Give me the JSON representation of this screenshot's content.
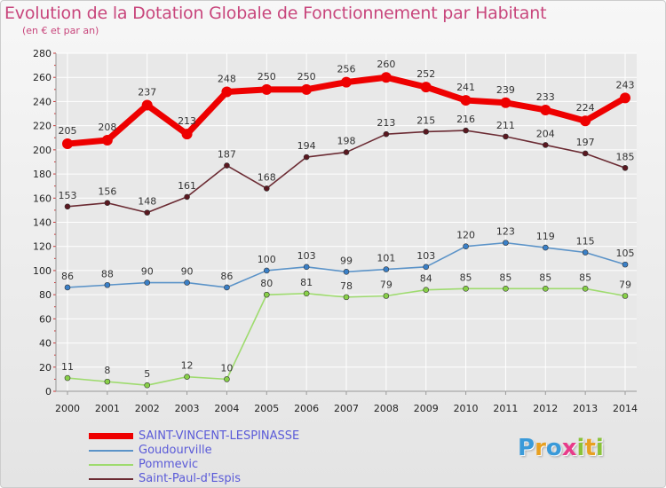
{
  "title": "Evolution de la Dotation Globale de Fonctionnement par Habitant",
  "subtitle": "(en € et par an)",
  "logo": {
    "text": "Proxiti",
    "letter_colors": [
      "#3a9ad9",
      "#e8a020",
      "#3a9ad9",
      "#e83a8a",
      "#8ac23a",
      "#e8a020",
      "#8ac23a"
    ]
  },
  "colors": {
    "title": "#c8467c",
    "legend_text": "#5a5ad8",
    "grid": "#ffffff",
    "axis": "#999999"
  },
  "chart_data": {
    "type": "line",
    "title": "Evolution de la Dotation Globale de Fonctionnement par Habitant",
    "subtitle": "(en € et par an)",
    "xlabel": "",
    "ylabel": "",
    "x": [
      "2000",
      "2001",
      "2002",
      "2003",
      "2004",
      "2005",
      "2006",
      "2007",
      "2008",
      "2009",
      "2010",
      "2011",
      "2012",
      "2013",
      "2014"
    ],
    "ylim": [
      0,
      280
    ],
    "yticks": [
      "0",
      "20",
      "40",
      "60",
      "80",
      "100",
      "120",
      "140",
      "160",
      "180",
      "200",
      "220",
      "240",
      "260",
      "280"
    ],
    "grid": true,
    "legend_position": "bottom-left",
    "series": [
      {
        "name": "SAINT-VINCENT-LESPINASSE",
        "color": "#ee0000",
        "marker": "#ee0000",
        "emphasis": true,
        "values": [
          205,
          208,
          237,
          213,
          248,
          250,
          250,
          256,
          260,
          252,
          241,
          239,
          233,
          224,
          243
        ]
      },
      {
        "name": "Goudourville",
        "color": "#5b93c8",
        "marker": "#3a80c8",
        "emphasis": false,
        "values": [
          86,
          88,
          90,
          90,
          86,
          100,
          103,
          99,
          101,
          103,
          120,
          123,
          119,
          115,
          105
        ]
      },
      {
        "name": "Pommevic",
        "color": "#9edb6e",
        "marker": "#88d048",
        "emphasis": false,
        "values": [
          11,
          8,
          5,
          12,
          10,
          80,
          81,
          78,
          79,
          84,
          85,
          85,
          85,
          85,
          79
        ]
      },
      {
        "name": "Saint-Paul-d'Espis",
        "color": "#6b2b33",
        "marker": "#5a1820",
        "emphasis": false,
        "values": [
          153,
          156,
          148,
          161,
          187,
          168,
          194,
          198,
          213,
          215,
          216,
          211,
          204,
          197,
          185
        ]
      }
    ]
  }
}
